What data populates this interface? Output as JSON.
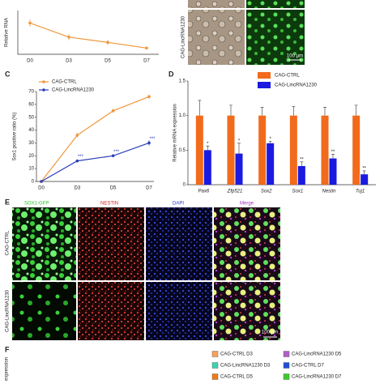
{
  "panel_labels": {
    "c": "C",
    "d": "D",
    "e": "E",
    "f": "F"
  },
  "chart_data": [
    {
      "type": "line",
      "y_label": "Relative RNA",
      "categories": [
        "D0",
        "D3",
        "D5",
        "D7"
      ],
      "ylim": [
        0,
        1.4
      ],
      "series": [
        {
          "color": "#f0963c",
          "values": [
            1.0,
            0.55,
            0.38,
            0.2
          ],
          "errors": [
            0.12,
            0.1,
            0.08,
            0.04
          ]
        }
      ]
    },
    {
      "type": "line",
      "y_label": "Sox1 positive ratio (%)",
      "categories": [
        "D0",
        "D3",
        "D5",
        "D7"
      ],
      "ylim": [
        0,
        70
      ],
      "yticks": [
        0,
        10,
        20,
        30,
        40,
        50,
        60,
        70
      ],
      "legend": "top-left",
      "series": [
        {
          "name": "CAG-CTRL",
          "color": "#f0963c",
          "values": [
            0,
            36,
            55,
            66
          ],
          "errors": [
            0,
            2,
            1.5,
            1.5
          ]
        },
        {
          "name": "CAG-LincRNA1230",
          "color": "#2c3db8",
          "values": [
            0,
            16,
            20,
            30
          ],
          "errors": [
            0,
            1,
            1,
            2
          ],
          "labels": [
            null,
            "***",
            "***",
            "***"
          ]
        }
      ]
    },
    {
      "type": "bar",
      "y_label": "Relative mRNA expression",
      "categories": [
        "Pax6",
        "Zfp521",
        "Sox2",
        "Sox1",
        "Nestin",
        "Tuj1"
      ],
      "ylim": [
        0,
        1.5
      ],
      "yticks": [
        0,
        0.5,
        {
          "value": 1,
          "label": "1.0"
        },
        1.5
      ],
      "legend": "top",
      "series": [
        {
          "name": "CAG-CTRL",
          "color": "#f26a1b",
          "values": [
            1,
            1,
            1,
            1,
            1,
            1
          ],
          "errors": [
            0.22,
            0.15,
            0.12,
            0.13,
            0.12,
            0.15
          ]
        },
        {
          "name": "CAG-LincRNA1230",
          "color": "#1a1ae0",
          "values": [
            0.5,
            0.45,
            0.6,
            0.27,
            0.38,
            0.15
          ],
          "errors": [
            0.06,
            0.15,
            0.03,
            0.06,
            0.06,
            0.05
          ],
          "labels": [
            "*",
            "*",
            "*",
            "**",
            "**",
            "**"
          ]
        }
      ]
    },
    {
      "type": "legend",
      "y_label": "expression",
      "series": [
        {
          "name": "CAG-CTRL D3",
          "color": "#f6a25a"
        },
        {
          "name": "CAG-LincRNA1230 D3",
          "color": "#3cd3b0"
        },
        {
          "name": "CAG-CTRL D5",
          "color": "#f07a1a"
        },
        {
          "name": "CAG-LincRNA1230 D5",
          "color": "#b05fc8"
        },
        {
          "name": "CAG-CTRL D7",
          "color": "#1f4fd8"
        },
        {
          "name": "CAG-LincRNA1230 D7",
          "color": "#3ccc2a"
        }
      ]
    }
  ],
  "top_images": {
    "row_label": "CAG-LincRNA1230",
    "scale_bar": "100 μm"
  },
  "figure_e": {
    "columns": [
      "SOX1-GFP",
      "NESTIN",
      "DAPI",
      "Merge"
    ],
    "rows": [
      "CAG-CTRL",
      "CAG-LincRNA1230"
    ],
    "scale_bar": "100 μm"
  }
}
